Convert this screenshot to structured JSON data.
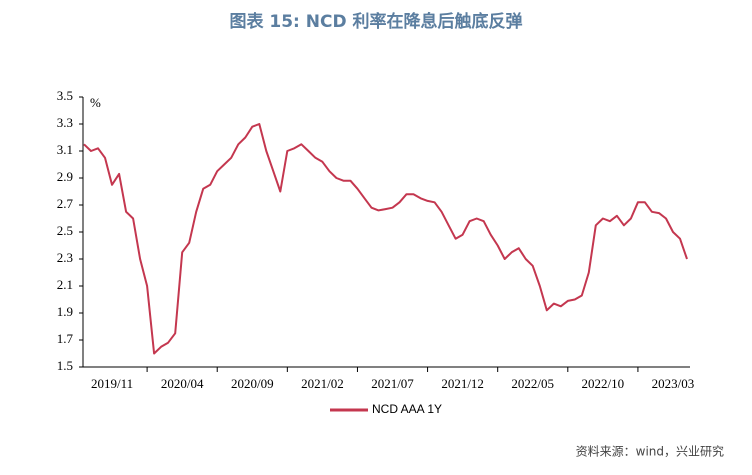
{
  "chart_data": {
    "type": "line",
    "title": "图表 15: NCD 利率在降息后触底反弹",
    "y_label": "%",
    "source": "资料来源：wind，兴业研究",
    "categories": [
      null,
      null,
      null,
      null,
      "2019/11",
      null,
      null,
      null,
      null,
      null,
      null,
      null,
      null,
      null,
      "2020/04",
      null,
      null,
      null,
      null,
      null,
      null,
      null,
      null,
      null,
      "2020/09",
      null,
      null,
      null,
      null,
      null,
      null,
      null,
      null,
      null,
      "2021/02",
      null,
      null,
      null,
      null,
      null,
      null,
      null,
      null,
      null,
      "2021/07",
      null,
      null,
      null,
      null,
      null,
      null,
      null,
      null,
      null,
      "2021/12",
      null,
      null,
      null,
      null,
      null,
      null,
      null,
      null,
      null,
      "2022/05",
      null,
      null,
      null,
      null,
      null,
      null,
      null,
      null,
      null,
      "2022/10",
      null,
      null,
      null,
      null,
      null,
      null,
      null,
      null,
      null,
      "2023/03",
      null,
      null
    ],
    "series": [
      {
        "name": "NCD AAA 1Y",
        "color": "#c4374f",
        "values": [
          3.15,
          3.1,
          3.12,
          3.05,
          2.85,
          2.93,
          2.65,
          2.6,
          2.3,
          2.1,
          1.6,
          1.65,
          1.68,
          1.75,
          2.35,
          2.42,
          2.65,
          2.82,
          2.85,
          2.95,
          3.0,
          3.05,
          3.15,
          3.2,
          3.28,
          3.3,
          3.1,
          2.95,
          2.8,
          3.1,
          3.12,
          3.15,
          3.1,
          3.05,
          3.02,
          2.95,
          2.9,
          2.88,
          2.88,
          2.82,
          2.75,
          2.68,
          2.66,
          2.67,
          2.68,
          2.72,
          2.78,
          2.78,
          2.75,
          2.73,
          2.72,
          2.65,
          2.55,
          2.45,
          2.48,
          2.58,
          2.6,
          2.58,
          2.48,
          2.4,
          2.3,
          2.35,
          2.38,
          2.3,
          2.25,
          2.1,
          1.92,
          1.97,
          1.95,
          1.99,
          2.0,
          2.03,
          2.2,
          2.55,
          2.6,
          2.58,
          2.62,
          2.55,
          2.6,
          2.72,
          2.72,
          2.65,
          2.64,
          2.6,
          2.5,
          2.45,
          2.3
        ]
      }
    ],
    "ylim": [
      1.5,
      3.5
    ],
    "yticks": [
      1.5,
      1.7,
      1.9,
      2.1,
      2.3,
      2.5,
      2.7,
      2.9,
      3.1,
      3.3,
      3.5
    ],
    "grid": false
  }
}
